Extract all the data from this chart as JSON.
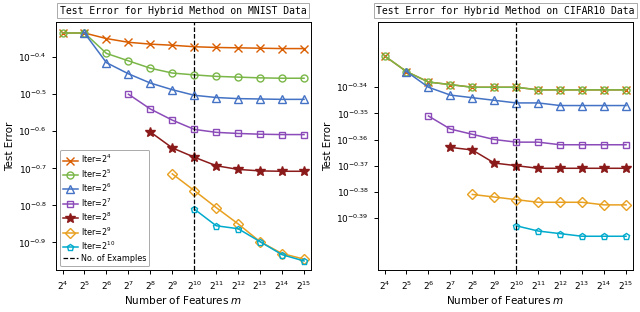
{
  "mnist_title": "Test Error for Hybrid Method on MNIST Data",
  "cifar_title": "Test Error for Hybrid Method on CIFAR10 Data",
  "xlabel": "Number of Features $m$",
  "ylabel": "Test Error",
  "x_exponents": [
    4,
    5,
    6,
    7,
    8,
    9,
    10,
    11,
    12,
    13,
    14,
    15
  ],
  "vline_exp": 10,
  "series_labels": [
    "Iter=$2^{4}$",
    "Iter=$2^{5}$",
    "Iter=$2^{6}$",
    "Iter=$2^{7}$",
    "Iter=$2^{8}$",
    "Iter=$2^{9}$",
    "Iter=$2^{10}$"
  ],
  "markers": [
    "x",
    "o",
    "^",
    "s",
    "*",
    "D",
    "p"
  ],
  "colors": [
    "#d95f02",
    "#7ab648",
    "#4472c4",
    "#8b4bb8",
    "#8b1a1a",
    "#e8a020",
    "#00aacc"
  ],
  "markersizes": [
    6,
    5,
    6,
    5,
    7,
    5,
    5
  ],
  "mnist_log10_y": [
    [
      -0.335,
      -0.335,
      -0.35,
      -0.36,
      -0.365,
      -0.368,
      -0.372,
      -0.374,
      -0.375,
      -0.376,
      -0.377,
      -0.377
    ],
    [
      -0.335,
      -0.335,
      -0.39,
      -0.41,
      -0.43,
      -0.443,
      -0.448,
      -0.452,
      -0.454,
      -0.456,
      -0.457,
      -0.457
    ],
    [
      null,
      -0.335,
      -0.415,
      -0.445,
      -0.47,
      -0.488,
      -0.503,
      -0.509,
      -0.512,
      -0.513,
      -0.514,
      -0.514
    ],
    [
      null,
      null,
      null,
      -0.5,
      -0.54,
      -0.57,
      -0.595,
      -0.603,
      -0.606,
      -0.608,
      -0.609,
      -0.609
    ],
    [
      null,
      null,
      null,
      null,
      -0.602,
      -0.645,
      -0.67,
      -0.693,
      -0.703,
      -0.707,
      -0.708,
      -0.708
    ],
    [
      null,
      null,
      null,
      null,
      null,
      -0.715,
      -0.76,
      -0.806,
      -0.85,
      -0.898,
      -0.93,
      -0.945
    ],
    [
      null,
      null,
      null,
      null,
      null,
      null,
      -0.81,
      -0.855,
      -0.863,
      -0.898,
      -0.933,
      -0.95
    ]
  ],
  "cifar_log10_y": [
    [
      -0.328,
      -0.334,
      -0.338,
      -0.339,
      -0.34,
      -0.34,
      -0.34,
      -0.341,
      -0.341,
      -0.341,
      -0.341,
      -0.341
    ],
    [
      -0.328,
      -0.334,
      -0.338,
      -0.339,
      -0.34,
      -0.34,
      -0.34,
      -0.341,
      -0.341,
      -0.341,
      -0.341,
      -0.341
    ],
    [
      null,
      -0.334,
      -0.34,
      -0.343,
      -0.344,
      -0.345,
      -0.346,
      -0.346,
      -0.347,
      -0.347,
      -0.347,
      -0.347
    ],
    [
      null,
      null,
      -0.351,
      -0.356,
      -0.358,
      -0.36,
      -0.361,
      -0.361,
      -0.362,
      -0.362,
      -0.362,
      -0.362
    ],
    [
      null,
      null,
      null,
      -0.363,
      -0.364,
      -0.369,
      -0.37,
      -0.371,
      -0.371,
      -0.371,
      -0.371,
      -0.371
    ],
    [
      null,
      null,
      null,
      null,
      -0.381,
      -0.382,
      -0.383,
      -0.384,
      -0.384,
      -0.384,
      -0.385,
      -0.385
    ],
    [
      null,
      null,
      null,
      null,
      null,
      null,
      -0.393,
      -0.395,
      -0.396,
      -0.397,
      -0.397,
      -0.397
    ]
  ],
  "mnist_yticks": [
    -0.4,
    -0.5,
    -0.6,
    -0.7,
    -0.8,
    -0.9
  ],
  "mnist_ylim": [
    -0.975,
    -0.305
  ],
  "cifar_yticks": [
    -0.34,
    -0.35,
    -0.36,
    -0.37,
    -0.38,
    -0.39
  ],
  "cifar_ylim": [
    -0.41,
    -0.315
  ]
}
